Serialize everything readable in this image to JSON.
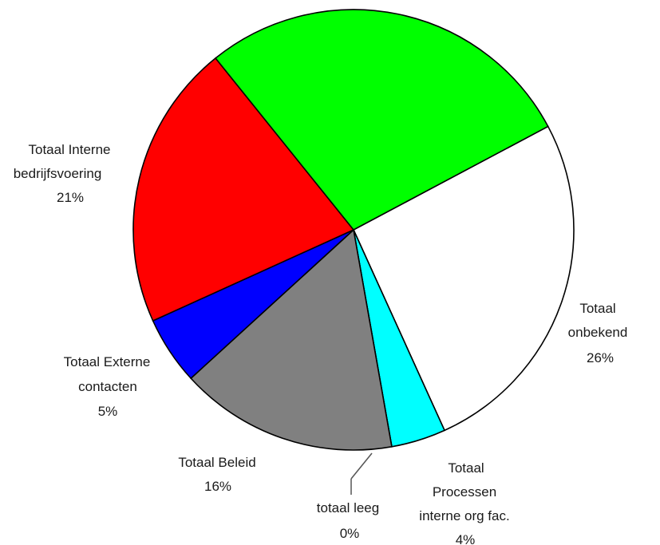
{
  "chart_data": {
    "type": "pie",
    "slices": [
      {
        "label": "Totaal onbekend",
        "value": 26,
        "pct_label": "26%",
        "color": "#ffffff"
      },
      {
        "label": "Totaal Processen interne org fac.",
        "value": 4,
        "pct_label": "4%",
        "color": "#00ffff"
      },
      {
        "label": "totaal leeg",
        "value": 0,
        "pct_label": "0%",
        "color": "#ffffff"
      },
      {
        "label": "Totaal Beleid",
        "value": 16,
        "pct_label": "16%",
        "color": "#808080"
      },
      {
        "label": "Totaal Externe contacten",
        "value": 5,
        "pct_label": "5%",
        "color": "#0000ff"
      },
      {
        "label": "Totaal Interne bedrijfsvoering",
        "value": 21,
        "pct_label": "21%",
        "color": "#ff0000"
      },
      {
        "label": "",
        "value": 28,
        "pct_label": "",
        "color": "#00ff00"
      }
    ]
  },
  "labels": {
    "onbekend": [
      "Totaal",
      "onbekend",
      "26%"
    ],
    "processen": [
      "Totaal",
      "Processen",
      "interne org fac.",
      "4%"
    ],
    "leeg": [
      "totaal leeg",
      "0%"
    ],
    "beleid": [
      "Totaal Beleid",
      "16%"
    ],
    "externe": [
      "Totaal Externe",
      "contacten",
      "5%"
    ],
    "interne": [
      "Totaal Interne",
      "bedrijfsvoering",
      "21%"
    ]
  }
}
